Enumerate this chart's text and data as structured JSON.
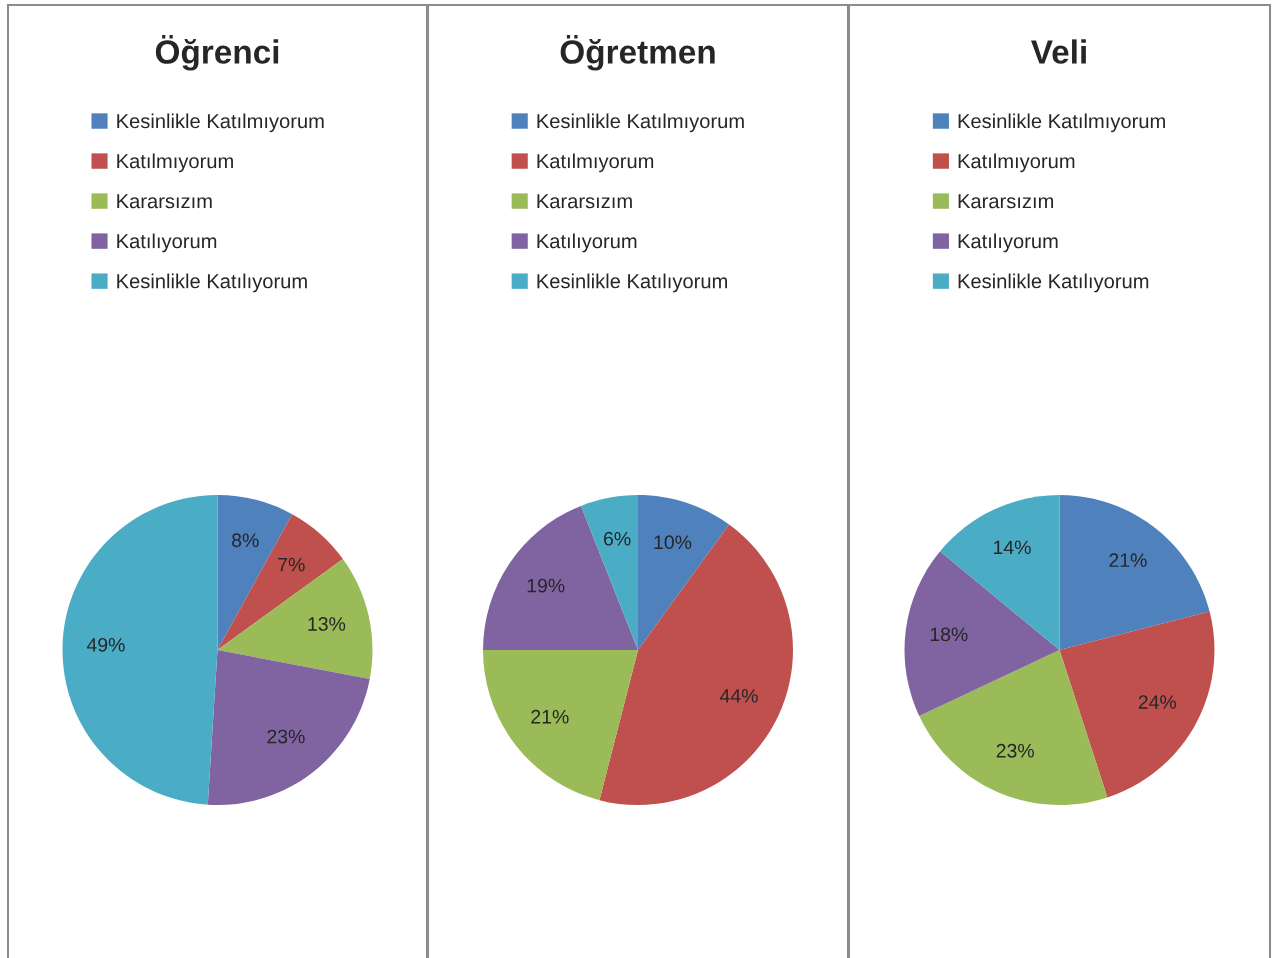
{
  "chart_data": [
    {
      "type": "pie",
      "title": "Öğrenci",
      "categories": [
        "Kesinlikle Katılmıyorum",
        "Katılmıyorum",
        "Kararsızım",
        "Katılıyorum",
        "Kesinlikle Katılıyorum"
      ],
      "values": [
        8,
        7,
        13,
        23,
        49
      ],
      "value_labels": [
        "8%",
        "7%",
        "13%",
        "23%",
        "49%"
      ],
      "colors": [
        "#4f81bd",
        "#c0504d",
        "#9bbb59",
        "#8064a2",
        "#4bacc6"
      ],
      "legend": "top"
    },
    {
      "type": "pie",
      "title": "Öğretmen",
      "categories": [
        "Kesinlikle Katılmıyorum",
        "Katılmıyorum",
        "Kararsızım",
        "Katılıyorum",
        "Kesinlikle Katılıyorum"
      ],
      "values": [
        10,
        44,
        21,
        19,
        6
      ],
      "value_labels": [
        "10%",
        "44%",
        "21%",
        "19%",
        "6%"
      ],
      "colors": [
        "#4f81bd",
        "#c0504d",
        "#9bbb59",
        "#8064a2",
        "#4bacc6"
      ],
      "legend": "top"
    },
    {
      "type": "pie",
      "title": "Veli",
      "categories": [
        "Kesinlikle Katılmıyorum",
        "Katılmıyorum",
        "Kararsızım",
        "Katılıyorum",
        "Kesinlikle Katılıyorum"
      ],
      "values": [
        21,
        24,
        23,
        18,
        14
      ],
      "value_labels": [
        "21%",
        "24%",
        "23%",
        "18%",
        "14%"
      ],
      "colors": [
        "#4f81bd",
        "#c0504d",
        "#9bbb59",
        "#8064a2",
        "#4bacc6"
      ],
      "legend": "top"
    }
  ]
}
